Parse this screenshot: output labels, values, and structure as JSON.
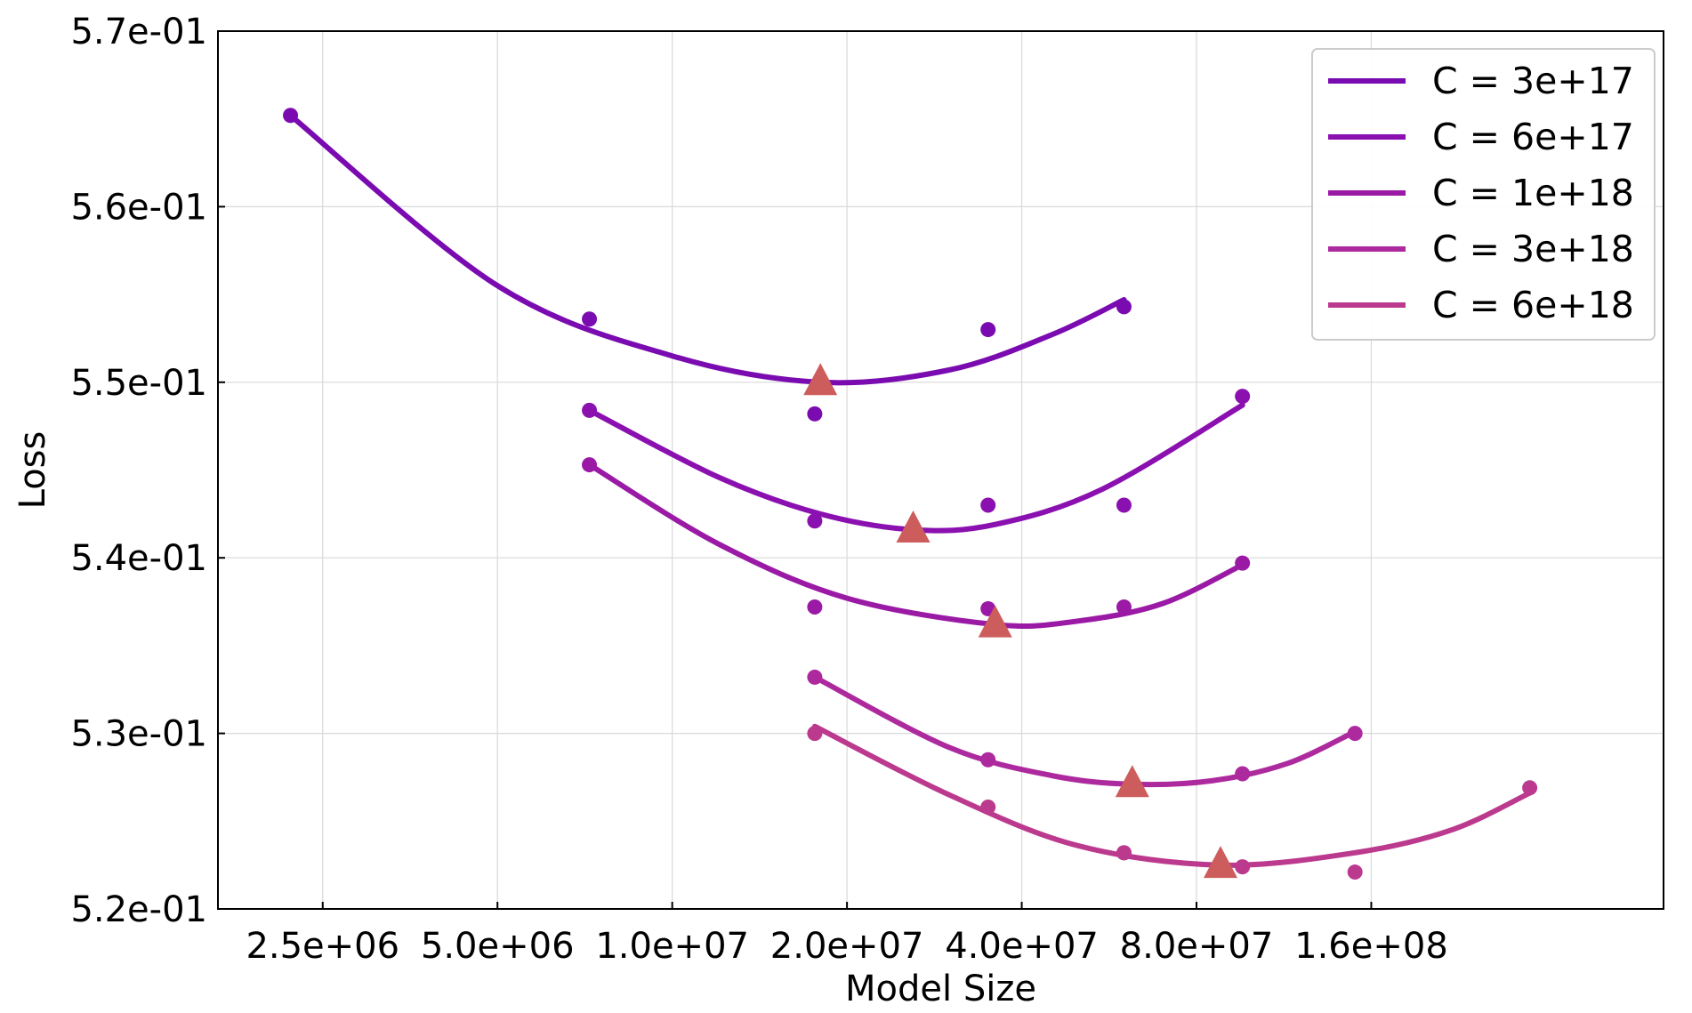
{
  "chart_data": {
    "type": "scatter",
    "title": "",
    "xlabel": "Model Size",
    "ylabel": "Loss",
    "x_scale": "log2",
    "xlim": [
      1650000,
      510000000
    ],
    "ylim": [
      0.52,
      0.57
    ],
    "x_ticks": [
      2500000,
      5000000,
      10000000,
      20000000,
      40000000,
      80000000,
      160000000
    ],
    "x_tick_labels": [
      "2.5e+06",
      "5.0e+06",
      "1.0e+07",
      "2.0e+07",
      "4.0e+07",
      "8.0e+07",
      "1.6e+08"
    ],
    "y_ticks": [
      0.52,
      0.53,
      0.54,
      0.55,
      0.56,
      0.57
    ],
    "y_tick_labels": [
      "5.2e-01",
      "5.3e-01",
      "5.4e-01",
      "5.5e-01",
      "5.6e-01",
      "5.7e-01"
    ],
    "grid": true,
    "legend_position": "top-right",
    "series": [
      {
        "name": "C = 3e+17",
        "color": "#7a0bb0",
        "points": [
          [
            2200000,
            0.5652
          ],
          [
            7200000,
            0.5536
          ],
          [
            17600000,
            0.5482
          ],
          [
            35000000,
            0.553
          ],
          [
            60000000,
            0.5543
          ]
        ],
        "fit_curve": [
          [
            2200000,
            0.5652
          ],
          [
            5000000,
            0.5555
          ],
          [
            10000000,
            0.5515
          ],
          [
            18000000,
            0.55
          ],
          [
            30000000,
            0.5507
          ],
          [
            45000000,
            0.5527
          ],
          [
            60000000,
            0.5547
          ]
        ],
        "optimum": [
          18000000,
          0.55
        ]
      },
      {
        "name": "C = 6e+17",
        "color": "#8b10b0",
        "points": [
          [
            7200000,
            0.5484
          ],
          [
            17600000,
            0.5421
          ],
          [
            35000000,
            0.543
          ],
          [
            60000000,
            0.543
          ],
          [
            96000000,
            0.5492
          ]
        ],
        "fit_curve": [
          [
            7200000,
            0.5484
          ],
          [
            12000000,
            0.5446
          ],
          [
            18000000,
            0.5425
          ],
          [
            26000000,
            0.5416
          ],
          [
            36000000,
            0.5419
          ],
          [
            55000000,
            0.5439
          ],
          [
            96000000,
            0.5487
          ]
        ],
        "optimum": [
          26000000,
          0.5416
        ]
      },
      {
        "name": "C = 1e+18",
        "color": "#9a1aa6",
        "points": [
          [
            7200000,
            0.5453
          ],
          [
            17600000,
            0.5372
          ],
          [
            35000000,
            0.5371
          ],
          [
            60000000,
            0.5372
          ],
          [
            96000000,
            0.5397
          ]
        ],
        "fit_curve": [
          [
            7200000,
            0.5453
          ],
          [
            12000000,
            0.5408
          ],
          [
            20000000,
            0.5377
          ],
          [
            36000000,
            0.5362
          ],
          [
            50000000,
            0.5364
          ],
          [
            70000000,
            0.5374
          ],
          [
            96000000,
            0.5396
          ]
        ],
        "optimum": [
          36000000,
          0.5362
        ]
      },
      {
        "name": "C = 3e+18",
        "color": "#ad2a9e",
        "points": [
          [
            17600000,
            0.5332
          ],
          [
            35000000,
            0.5285
          ],
          [
            60000000,
            0.5232
          ],
          [
            96000000,
            0.5277
          ],
          [
            150000000,
            0.53
          ]
        ],
        "fit_curve": [
          [
            17600000,
            0.5332
          ],
          [
            30000000,
            0.5292
          ],
          [
            45000000,
            0.5276
          ],
          [
            62000000,
            0.5271
          ],
          [
            85000000,
            0.5273
          ],
          [
            115000000,
            0.5283
          ],
          [
            150000000,
            0.5301
          ]
        ],
        "optimum": [
          62000000,
          0.5271
        ]
      },
      {
        "name": "C = 6e+18",
        "color": "#bb3a8e",
        "points": [
          [
            17600000,
            0.53
          ],
          [
            35000000,
            0.5258
          ],
          [
            60000000,
            0.5232
          ],
          [
            96000000,
            0.5224
          ],
          [
            150000000,
            0.5221
          ],
          [
            300000000,
            0.5269
          ]
        ],
        "fit_curve": [
          [
            17600000,
            0.5304
          ],
          [
            30000000,
            0.5265
          ],
          [
            50000000,
            0.5236
          ],
          [
            88000000,
            0.5225
          ],
          [
            150000000,
            0.5232
          ],
          [
            220000000,
            0.5245
          ],
          [
            300000000,
            0.5266
          ]
        ],
        "optimum": [
          88000000,
          0.5225
        ]
      }
    ],
    "optimum_marker_color": "#cd5c5c"
  }
}
